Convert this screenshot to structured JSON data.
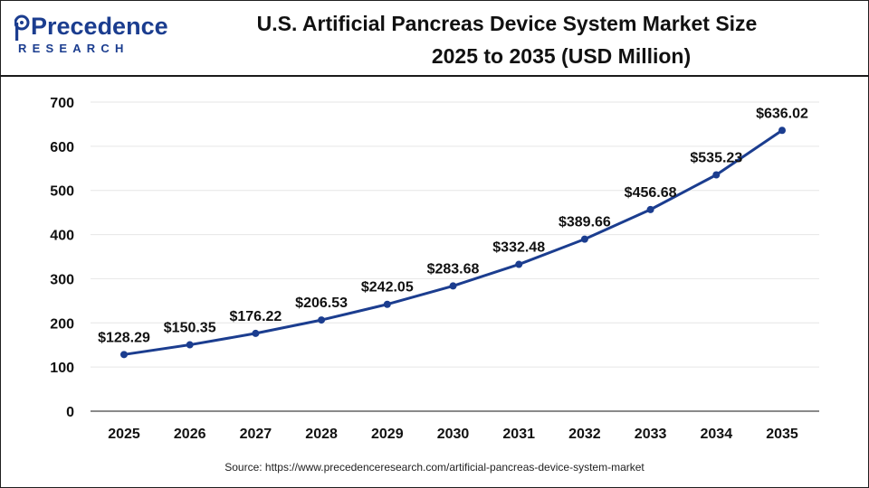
{
  "brand": {
    "name": "Precedence",
    "sub": "RESEARCH",
    "color": "#1b3d8f"
  },
  "header": {
    "title_line1": "U.S. Artificial Pancreas Device System Market Size",
    "title_line2": "2025 to 2035 (USD Million)"
  },
  "footer": {
    "source": "Source: https://www.precedenceresearch.com/artificial-pancreas-device-system-market"
  },
  "chart_data": {
    "type": "line",
    "title": "U.S. Artificial Pancreas Device System Market Size 2025 to 2035 (USD Million)",
    "xlabel": "",
    "ylabel": "",
    "categories": [
      "2025",
      "2026",
      "2027",
      "2028",
      "2029",
      "2030",
      "2031",
      "2032",
      "2033",
      "2034",
      "2035"
    ],
    "series": [
      {
        "values": [
          128.29,
          150.35,
          176.22,
          206.53,
          242.05,
          283.68,
          332.48,
          389.66,
          456.68,
          535.23,
          636.02
        ],
        "labels": [
          "$128.29",
          "$150.35",
          "$176.22",
          "$206.53",
          "$242.05",
          "$283.68",
          "$332.48",
          "$389.66",
          "$456.68",
          "$535.23",
          "$636.02"
        ],
        "color": "#1b3d8f"
      }
    ],
    "ylim": [
      0,
      700
    ],
    "yticks": [
      0,
      100,
      200,
      300,
      400,
      500,
      600,
      700
    ],
    "grid": true,
    "legend": "none"
  }
}
